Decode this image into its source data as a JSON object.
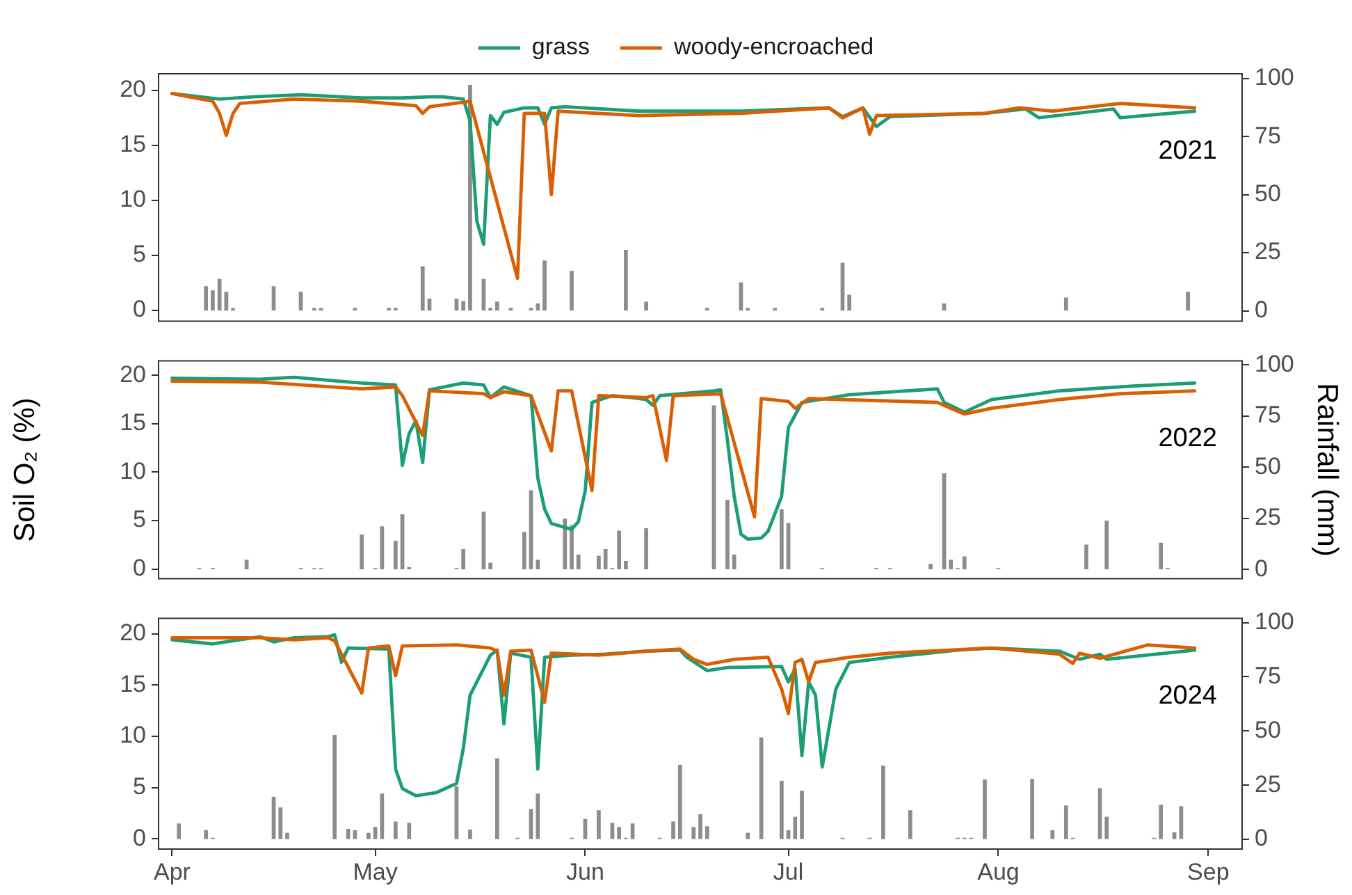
{
  "chart_data": [
    {
      "type": "line",
      "legend": "top",
      "tick_labels": "y",
      "annotations": [
        "2021"
      ],
      "xlim": [
        "--03-30",
        "--09-06"
      ],
      "ylim": [
        -1,
        21.5
      ],
      "yticks": [
        0,
        5,
        10,
        15,
        20
      ],
      "y2lim": [
        -4.5,
        102
      ],
      "y2ticks": [
        0,
        25,
        50,
        75,
        100
      ],
      "series": [
        {
          "name": "grass",
          "color": "#1b9e77",
          "x": [
            "--04-01",
            "--04-08",
            "--04-13",
            "--04-20",
            "--04-29",
            "--05-05",
            "--05-09",
            "--05-11",
            "--05-14",
            "--05-15",
            "--05-16",
            "--05-17",
            "--05-18",
            "--05-19",
            "--05-20",
            "--05-23",
            "--05-25",
            "--05-26",
            "--05-27",
            "--05-29",
            "--06-09",
            "--06-24",
            "--07-07",
            "--07-09",
            "--07-12",
            "--07-14",
            "--07-16",
            "--07-30",
            "--08-05",
            "--08-07",
            "--08-18",
            "--08-19",
            "--08-30"
          ],
          "values": [
            19.7,
            19.2,
            19.4,
            19.6,
            19.3,
            19.3,
            19.4,
            19.4,
            19.2,
            17.2,
            8.1,
            6.0,
            17.7,
            16.9,
            18.0,
            18.4,
            18.4,
            16.9,
            18.4,
            18.5,
            18.1,
            18.1,
            18.4,
            17.6,
            18.4,
            16.7,
            17.6,
            17.9,
            18.3,
            17.5,
            18.3,
            17.5,
            18.1
          ]
        },
        {
          "name": "woody-encroached",
          "color": "#d95f02",
          "x": [
            "--04-01",
            "--04-07",
            "--04-08",
            "--04-09",
            "--04-10",
            "--04-11",
            "--04-19",
            "--04-29",
            "--05-07",
            "--05-08",
            "--05-09",
            "--05-15",
            "--05-22",
            "--05-23",
            "--05-26",
            "--05-27",
            "--05-28",
            "--06-09",
            "--06-24",
            "--07-07",
            "--07-09",
            "--07-12",
            "--07-13",
            "--07-14",
            "--07-30",
            "--08-04",
            "--08-09",
            "--08-19",
            "--08-30"
          ],
          "values": [
            19.7,
            19.0,
            17.9,
            15.9,
            17.9,
            18.8,
            19.2,
            19.0,
            18.6,
            17.9,
            18.5,
            19.0,
            2.9,
            17.9,
            17.9,
            10.5,
            18.1,
            17.7,
            17.9,
            18.4,
            17.5,
            18.4,
            16.0,
            17.7,
            17.9,
            18.4,
            18.1,
            18.8,
            18.4
          ]
        },
        {
          "type": "bar",
          "axis": "y2",
          "color": "#8c8c8c",
          "x": [
            "--04-06",
            "--04-07",
            "--04-08",
            "--04-09",
            "--04-10",
            "--04-16",
            "--04-20",
            "--04-22",
            "--04-23",
            "--04-28",
            "--05-03",
            "--05-04",
            "--05-08",
            "--05-09",
            "--05-13",
            "--05-14",
            "--05-15",
            "--05-17",
            "--05-18",
            "--05-19",
            "--05-21",
            "--05-24",
            "--05-25",
            "--05-26",
            "--05-30",
            "--06-07",
            "--06-10",
            "--06-19",
            "--06-24",
            "--06-25",
            "--06-29",
            "--07-06",
            "--07-09",
            "--07-10",
            "--07-24",
            "--08-11",
            "--08-29"
          ],
          "values": [
            10.4,
            8.6,
            13.5,
            8.0,
            1.0,
            10.4,
            8.0,
            1.0,
            1.0,
            1.0,
            1.0,
            1.0,
            19.0,
            5.0,
            5.0,
            4.0,
            97,
            13.5,
            1.0,
            3.7,
            1.0,
            1.0,
            3.0,
            21.5,
            17.0,
            26.0,
            3.7,
            1.0,
            12.0,
            1.0,
            1.0,
            1.0,
            20.5,
            6.7,
            3.0,
            5.5,
            8.0
          ]
        }
      ]
    },
    {
      "type": "line",
      "tick_labels": "y",
      "annotations": [
        "2022"
      ],
      "ylabel": "Soil O₂ (%)",
      "y2label": "Rainfall (mm)",
      "xlim": [
        "--03-30",
        "--09-06"
      ],
      "ylim": [
        -1,
        21.5
      ],
      "yticks": [
        0,
        5,
        10,
        15,
        20
      ],
      "y2lim": [
        -4.5,
        102
      ],
      "y2ticks": [
        0,
        25,
        50,
        75,
        100
      ],
      "series": [
        {
          "color": "#1b9e77",
          "x": [
            "--04-01",
            "--04-14",
            "--04-19",
            "--04-29",
            "--05-04",
            "--05-05",
            "--05-06",
            "--05-07",
            "--05-08",
            "--05-09",
            "--05-14",
            "--05-17",
            "--05-18",
            "--05-20",
            "--05-24",
            "--05-25",
            "--05-26",
            "--05-27",
            "--05-30",
            "--05-31",
            "--06-01",
            "--06-02",
            "--06-05",
            "--06-08",
            "--06-10",
            "--06-11",
            "--06-12",
            "--06-20",
            "--06-21",
            "--06-22",
            "--06-23",
            "--06-24",
            "--06-25",
            "--06-27",
            "--06-28",
            "--06-30",
            "--07-01",
            "--07-03",
            "--07-10",
            "--07-23",
            "--07-24",
            "--07-27",
            "--07-31",
            "--08-10",
            "--08-21",
            "--08-30"
          ],
          "values": [
            19.7,
            19.6,
            19.8,
            19.2,
            19.0,
            10.7,
            14.0,
            15.3,
            11.0,
            18.5,
            19.2,
            19.0,
            17.7,
            18.8,
            17.9,
            9.4,
            6.2,
            4.7,
            4.1,
            4.9,
            8.1,
            17.2,
            17.9,
            17.7,
            17.5,
            16.9,
            17.9,
            18.4,
            18.5,
            13.3,
            7.5,
            3.6,
            3.1,
            3.2,
            3.9,
            7.5,
            14.6,
            17.2,
            18.0,
            18.6,
            17.2,
            16.2,
            17.5,
            18.4,
            18.9,
            19.2
          ]
        },
        {
          "color": "#d95f02",
          "x": [
            "--04-01",
            "--04-14",
            "--04-29",
            "--05-04",
            "--05-05",
            "--05-08",
            "--05-09",
            "--05-17",
            "--05-18",
            "--05-20",
            "--05-24",
            "--05-27",
            "--05-28",
            "--05-30",
            "--06-02",
            "--06-03",
            "--06-10",
            "--06-11",
            "--06-13",
            "--06-14",
            "--06-21",
            "--06-26",
            "--06-27",
            "--07-01",
            "--07-02",
            "--07-04",
            "--07-23",
            "--07-27",
            "--07-31",
            "--08-10",
            "--08-19",
            "--08-30"
          ],
          "values": [
            19.4,
            19.3,
            18.6,
            18.8,
            17.9,
            13.8,
            18.4,
            18.1,
            17.7,
            18.3,
            17.9,
            12.2,
            18.4,
            18.4,
            8.1,
            17.9,
            17.7,
            17.9,
            11.2,
            17.9,
            18.1,
            5.4,
            17.6,
            17.3,
            16.6,
            17.6,
            17.2,
            16.0,
            16.6,
            17.5,
            18.1,
            18.4
          ]
        },
        {
          "type": "bar",
          "axis": "y2",
          "color": "#8c8c8c",
          "x": [
            "--04-05",
            "--04-07",
            "--04-12",
            "--04-20",
            "--04-22",
            "--04-23",
            "--04-29",
            "--05-01",
            "--05-02",
            "--05-04",
            "--05-05",
            "--05-06",
            "--05-13",
            "--05-14",
            "--05-17",
            "--05-18",
            "--05-23",
            "--05-24",
            "--05-25",
            "--05-29",
            "--05-30",
            "--05-31",
            "--06-03",
            "--06-04",
            "--06-05",
            "--06-06",
            "--06-07",
            "--06-10",
            "--06-20",
            "--06-22",
            "--06-23",
            "--06-30",
            "--07-01",
            "--07-06",
            "--07-14",
            "--07-16",
            "--07-22",
            "--07-24",
            "--07-25",
            "--07-26",
            "--07-27",
            "--08-01",
            "--08-14",
            "--08-17",
            "--08-25",
            "--08-26"
          ],
          "values": [
            0.5,
            0.5,
            4.6,
            0.5,
            0.5,
            0.5,
            16.9,
            0.5,
            20.9,
            13.8,
            26.8,
            1.0,
            0.5,
            9.8,
            28.0,
            3.1,
            18.2,
            38.5,
            4.6,
            24.6,
            21.5,
            7.1,
            6.5,
            9.8,
            0.5,
            18.8,
            4.0,
            20.0,
            80,
            33.8,
            7.1,
            29.2,
            22.5,
            0.5,
            0.5,
            0.5,
            2.5,
            46.8,
            4.6,
            0.5,
            6.2,
            0.5,
            12.0,
            23.7,
            12.9,
            0.5
          ]
        }
      ]
    },
    {
      "type": "line",
      "annotations": [
        "2024"
      ],
      "xlim": [
        "--03-30",
        "--09-06"
      ],
      "xticks": [
        {
          "value": "--04-01",
          "label": "Apr"
        },
        {
          "value": "--05-01",
          "label": "May"
        },
        {
          "value": "--06-01",
          "label": "Jun"
        },
        {
          "value": "--07-01",
          "label": "Jul"
        },
        {
          "value": "--08-01",
          "label": "Aug"
        },
        {
          "value": "--09-01",
          "label": "Sep"
        }
      ],
      "ylim": [
        -1,
        21.5
      ],
      "yticks": [
        0,
        5,
        10,
        15,
        20
      ],
      "y2lim": [
        -4.5,
        102
      ],
      "y2ticks": [
        0,
        25,
        50,
        75,
        100
      ],
      "series": [
        {
          "color": "#1b9e77",
          "x": [
            "--04-01",
            "--04-07",
            "--04-14",
            "--04-16",
            "--04-19",
            "--04-24",
            "--04-25",
            "--04-26",
            "--04-27",
            "--05-03",
            "--05-04",
            "--05-05",
            "--05-07",
            "--05-10",
            "--05-13",
            "--05-14",
            "--05-15",
            "--05-17",
            "--05-18",
            "--05-19",
            "--05-20",
            "--05-21",
            "--05-24",
            "--05-25",
            "--05-26",
            "--05-30",
            "--06-04",
            "--06-10",
            "--06-15",
            "--06-16",
            "--06-19",
            "--06-22",
            "--06-30",
            "--07-01",
            "--07-02",
            "--07-03",
            "--07-04",
            "--07-05",
            "--07-06",
            "--07-08",
            "--07-10",
            "--07-16",
            "--07-26",
            "--07-31",
            "--08-10",
            "--08-13",
            "--08-16",
            "--08-17",
            "--08-30"
          ],
          "values": [
            19.4,
            19.0,
            19.7,
            19.2,
            19.6,
            19.7,
            19.9,
            17.2,
            18.6,
            18.5,
            6.8,
            4.9,
            4.2,
            4.5,
            5.4,
            8.8,
            14.0,
            16.6,
            17.9,
            18.4,
            11.2,
            18.1,
            17.7,
            6.8,
            17.7,
            17.9,
            18.0,
            18.3,
            18.4,
            17.7,
            16.4,
            16.7,
            16.8,
            15.3,
            16.6,
            8.1,
            15.3,
            14.0,
            7.0,
            14.6,
            17.2,
            17.7,
            18.4,
            18.6,
            18.3,
            17.5,
            18.0,
            17.5,
            18.4
          ]
        },
        {
          "color": "#d95f02",
          "x": [
            "--04-01",
            "--04-14",
            "--04-19",
            "--04-24",
            "--04-25",
            "--04-29",
            "--04-30",
            "--05-03",
            "--05-04",
            "--05-05",
            "--05-13",
            "--05-18",
            "--05-19",
            "--05-20",
            "--05-21",
            "--05-24",
            "--05-26",
            "--05-27",
            "--06-03",
            "--06-10",
            "--06-15",
            "--06-17",
            "--06-19",
            "--06-23",
            "--06-28",
            "--06-30",
            "--07-01",
            "--07-02",
            "--07-03",
            "--07-04",
            "--07-05",
            "--07-10",
            "--07-16",
            "--07-31",
            "--08-10",
            "--08-12",
            "--08-13",
            "--08-16",
            "--08-23",
            "--08-30"
          ],
          "values": [
            19.6,
            19.6,
            19.4,
            19.6,
            19.3,
            14.2,
            18.6,
            18.8,
            15.9,
            18.8,
            18.9,
            18.6,
            18.3,
            14.0,
            18.3,
            18.4,
            13.3,
            18.1,
            17.9,
            18.3,
            18.5,
            17.5,
            17.0,
            17.5,
            17.7,
            14.6,
            12.2,
            17.2,
            17.5,
            15.3,
            17.2,
            17.7,
            18.1,
            18.6,
            18.0,
            17.1,
            18.1,
            17.6,
            18.9,
            18.6
          ]
        },
        {
          "type": "bar",
          "axis": "y2",
          "color": "#8c8c8c",
          "x": [
            "--04-02",
            "--04-06",
            "--04-07",
            "--04-16",
            "--04-17",
            "--04-18",
            "--04-25",
            "--04-27",
            "--04-28",
            "--04-30",
            "--05-01",
            "--05-02",
            "--05-04",
            "--05-06",
            "--05-13",
            "--05-15",
            "--05-19",
            "--05-22",
            "--05-24",
            "--05-25",
            "--05-30",
            "--06-01",
            "--06-03",
            "--06-05",
            "--06-06",
            "--06-07",
            "--06-08",
            "--06-12",
            "--06-14",
            "--06-15",
            "--06-17",
            "--06-18",
            "--06-19",
            "--06-25",
            "--06-27",
            "--06-30",
            "--07-01",
            "--07-02",
            "--07-03",
            "--07-09",
            "--07-13",
            "--07-15",
            "--07-19",
            "--07-26",
            "--07-27",
            "--07-28",
            "--07-30",
            "--08-06",
            "--08-09",
            "--08-11",
            "--08-12",
            "--08-16",
            "--08-17",
            "--08-24",
            "--08-25",
            "--08-27",
            "--08-28"
          ],
          "values": [
            7.1,
            4.0,
            0.5,
            19.4,
            14.5,
            2.8,
            48.0,
            4.6,
            4.0,
            2.8,
            5.5,
            20.9,
            8.0,
            7.4,
            24.3,
            4.3,
            37.2,
            0.5,
            13.8,
            20.9,
            0.5,
            9.2,
            13.2,
            7.4,
            5.5,
            0.5,
            7.1,
            0.5,
            8.0,
            34.2,
            5.5,
            11.4,
            5.8,
            2.8,
            46.8,
            26.8,
            4.0,
            10.2,
            22.2,
            0.5,
            0.5,
            33.8,
            13.2,
            0.5,
            0.5,
            0.5,
            27.4,
            27.7,
            4.0,
            15.4,
            0.5,
            23.4,
            10.2,
            0.5,
            15.7,
            3.0,
            15.1
          ]
        }
      ]
    }
  ]
}
